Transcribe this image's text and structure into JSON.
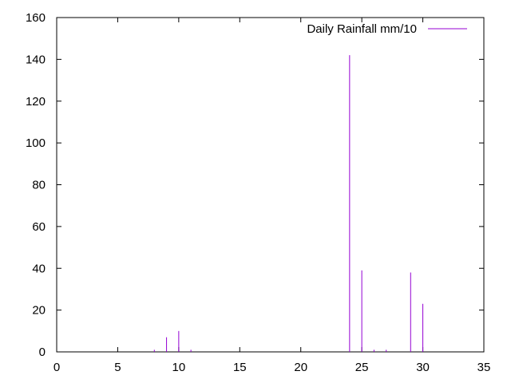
{
  "chart_data": {
    "type": "bar",
    "series": [
      {
        "name": "Daily Rainfall mm/10",
        "color": "#9400d3",
        "points": [
          {
            "x": 8,
            "y": 1
          },
          {
            "x": 9,
            "y": 7
          },
          {
            "x": 10,
            "y": 10
          },
          {
            "x": 11,
            "y": 1
          },
          {
            "x": 24,
            "y": 142
          },
          {
            "x": 25,
            "y": 39
          },
          {
            "x": 26,
            "y": 1
          },
          {
            "x": 27,
            "y": 1
          },
          {
            "x": 29,
            "y": 38
          },
          {
            "x": 30,
            "y": 23
          }
        ]
      }
    ],
    "xlim": [
      0,
      35
    ],
    "ylim": [
      0,
      160
    ],
    "x_ticks": [
      0,
      5,
      10,
      15,
      20,
      25,
      30,
      35
    ],
    "y_ticks": [
      0,
      20,
      40,
      60,
      80,
      100,
      120,
      140,
      160
    ],
    "title": "",
    "xlabel": "",
    "ylabel": "",
    "grid": false,
    "legend_position": "top-right"
  }
}
